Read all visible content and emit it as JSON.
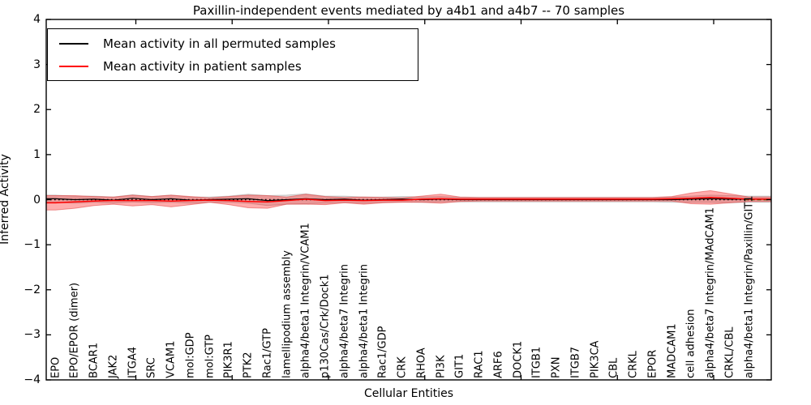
{
  "figure": {
    "title": "Paxillin-independent events mediated by a4b1 and a4b7 -- 70 samples",
    "xlabel": "Cellular Entities",
    "ylabel": "Inferred Activity"
  },
  "legend": {
    "entries": [
      {
        "label": "Mean activity in all permuted samples",
        "color": "#000000"
      },
      {
        "label": "Mean activity in patient samples",
        "color": "#ff0000"
      }
    ],
    "position": "upper left",
    "border_color": "#000000"
  },
  "chart_data": {
    "type": "line",
    "title": "Paxillin-independent events mediated by a4b1 and a4b7 -- 70 samples",
    "xlabel": "Cellular Entities",
    "ylabel": "Inferred Activity",
    "ylim": [
      -4,
      4
    ],
    "yticks": [
      4,
      3,
      2,
      1,
      0,
      -1,
      -2,
      -3,
      -4
    ],
    "ytick_labels": [
      "4",
      "3",
      "2",
      "1",
      "0",
      "−1",
      "−2",
      "−3",
      "−4"
    ],
    "xtick_indices": [
      4,
      9,
      14,
      19,
      24,
      29,
      34
    ],
    "grid": false,
    "zero_line": {
      "y": 0,
      "color": "#000000",
      "style": "dotted"
    },
    "zero_line_right_segment": {
      "y": 0,
      "color": "#007700",
      "style": "dashed"
    },
    "categories": [
      "EPO",
      "EPO/EPOR (dimer)",
      "BCAR1",
      "JAK2",
      "ITGA4",
      "SRC",
      "VCAM1",
      "mol:GDP",
      "mol:GTP",
      "PIK3R1",
      "PTK2",
      "Rac1/GTP",
      "lamellipodium assembly",
      "alpha4/beta1 Integrin/VCAM1",
      "p130Cas/Crk/Dock1",
      "alpha4/beta7 Integrin",
      "alpha4/beta1 Integrin",
      "Rac1/GDP",
      "CRK",
      "RHOA",
      "PI3K",
      "GIT1",
      "RAC1",
      "ARF6",
      "DOCK1",
      "ITGB1",
      "PXN",
      "ITGB7",
      "PIK3CA",
      "CBL",
      "CRKL",
      "EPOR",
      "MADCAM1",
      "cell adhesion",
      "alpha4/beta7 Integrin/MAdCAM1",
      "CRKL/CBL",
      "alpha4/beta1 Integrin/Paxillin/GIT1"
    ],
    "series": [
      {
        "name": "Mean activity in all permuted samples",
        "color": "#000000",
        "band_color": "rgba(130,130,130,0.25)",
        "values": [
          0.02,
          0,
          0.01,
          -0.01,
          0.03,
          0,
          0.02,
          -0.01,
          0,
          0.01,
          0.02,
          -0.02,
          0,
          0.02,
          0,
          0.01,
          -0.01,
          0,
          0.01,
          0,
          0.01,
          0,
          0,
          0,
          0,
          0,
          0,
          0,
          0,
          0,
          0,
          0,
          0,
          0.01,
          0.02,
          0.01,
          0.01
        ],
        "std": [
          0.08,
          0.08,
          0.07,
          0.07,
          0.08,
          0.07,
          0.08,
          0.07,
          0.06,
          0.07,
          0.1,
          0.11,
          0.1,
          0.11,
          0.08,
          0.07,
          0.07,
          0.06,
          0.06,
          0.06,
          0.06,
          0.05,
          0.05,
          0.05,
          0.05,
          0.05,
          0.05,
          0.05,
          0.05,
          0.05,
          0.05,
          0.05,
          0.06,
          0.07,
          0.08,
          0.08,
          0.07
        ]
      },
      {
        "name": "Mean activity in patient samples",
        "color": "#ff0000",
        "band_color": "rgba(255,0,0,0.32)",
        "values": [
          -0.07,
          -0.05,
          -0.03,
          -0.02,
          -0.02,
          -0.02,
          -0.03,
          -0.02,
          -0.01,
          -0.02,
          -0.04,
          -0.05,
          -0.02,
          0.01,
          -0.02,
          -0.01,
          -0.02,
          -0.01,
          -0.01,
          0.01,
          0.02,
          0.01,
          0.01,
          0.01,
          0.01,
          0.01,
          0.01,
          0.01,
          0.01,
          0.01,
          0.01,
          0.01,
          0.02,
          0.03,
          0.05,
          0.03,
          0.01
        ],
        "std": [
          0.16,
          0.14,
          0.1,
          0.08,
          0.12,
          0.09,
          0.13,
          0.09,
          0.05,
          0.09,
          0.14,
          0.14,
          0.08,
          0.11,
          0.09,
          0.06,
          0.08,
          0.06,
          0.05,
          0.07,
          0.1,
          0.05,
          0.04,
          0.04,
          0.04,
          0.04,
          0.04,
          0.04,
          0.04,
          0.04,
          0.04,
          0.04,
          0.05,
          0.12,
          0.15,
          0.1,
          0.05
        ]
      }
    ],
    "n_samples": "70"
  }
}
